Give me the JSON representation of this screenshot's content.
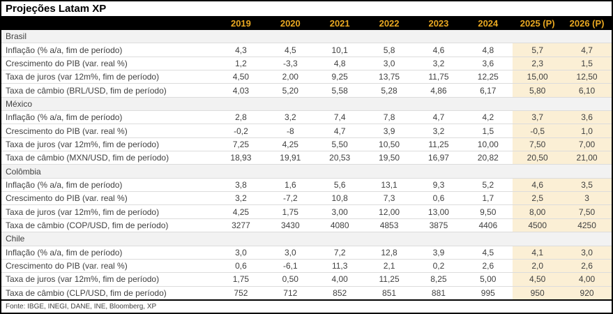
{
  "title": "Projeções Latam XP",
  "footer": {
    "source": "Fonte: IBGE, INEGI, DANE, INE, Bloomberg, XP"
  },
  "colors": {
    "header_bg": "#000000",
    "year_label": "#EAA821",
    "projection_highlight": "#FBEFD5",
    "section_row_bg": "#F2F2F2",
    "row_divider": "#DCDCDC",
    "body_text": "#3F3F3F"
  },
  "chart_data": {
    "type": "table",
    "title": "Projeções Latam XP",
    "columns": [
      "2019",
      "2020",
      "2021",
      "2022",
      "2023",
      "2024",
      "2025 (P)",
      "2026 (P)"
    ],
    "projection_columns": [
      "2025 (P)",
      "2026 (P)"
    ],
    "sections": [
      {
        "name": "Brasil",
        "rows": [
          {
            "label": "Inflação (% a/a, fim de período)",
            "values": [
              "4,3",
              "4,5",
              "10,1",
              "5,8",
              "4,6",
              "4,8",
              "5,7",
              "4,7"
            ]
          },
          {
            "label": "Crescimento do PIB (var. real %)",
            "values": [
              "1,2",
              "-3,3",
              "4,8",
              "3,0",
              "3,2",
              "3,6",
              "2,3",
              "1,5"
            ]
          },
          {
            "label": "Taxa de juros (var 12m%, fim de período)",
            "values": [
              "4,50",
              "2,00",
              "9,25",
              "13,75",
              "11,75",
              "12,25",
              "15,00",
              "12,50"
            ]
          },
          {
            "label": "Taxa de câmbio (BRL/USD, fim de período)",
            "values": [
              "4,03",
              "5,20",
              "5,58",
              "5,28",
              "4,86",
              "6,17",
              "5,80",
              "6,10"
            ]
          }
        ]
      },
      {
        "name": "México",
        "rows": [
          {
            "label": "Inflação (% a/a, fim de período)",
            "values": [
              "2,8",
              "3,2",
              "7,4",
              "7,8",
              "4,7",
              "4,2",
              "3,7",
              "3,6"
            ]
          },
          {
            "label": "Crescimento do PIB (var. real %)",
            "values": [
              "-0,2",
              "-8",
              "4,7",
              "3,9",
              "3,2",
              "1,5",
              "-0,5",
              "1,0"
            ]
          },
          {
            "label": "Taxa de juros (var 12m%, fim de período)",
            "values": [
              "7,25",
              "4,25",
              "5,50",
              "10,50",
              "11,25",
              "10,00",
              "7,50",
              "7,00"
            ]
          },
          {
            "label": "Taxa de câmbio (MXN/USD, fim de período)",
            "values": [
              "18,93",
              "19,91",
              "20,53",
              "19,50",
              "16,97",
              "20,82",
              "20,50",
              "21,00"
            ]
          }
        ]
      },
      {
        "name": "Colômbia",
        "rows": [
          {
            "label": "Inflação (% a/a, fim de período)",
            "values": [
              "3,8",
              "1,6",
              "5,6",
              "13,1",
              "9,3",
              "5,2",
              "4,6",
              "3,5"
            ]
          },
          {
            "label": "Crescimento do PIB (var. real %)",
            "values": [
              "3,2",
              "-7,2",
              "10,8",
              "7,3",
              "0,6",
              "1,7",
              "2,5",
              "3"
            ]
          },
          {
            "label": "Taxa de juros (var 12m%, fim de período)",
            "values": [
              "4,25",
              "1,75",
              "3,00",
              "12,00",
              "13,00",
              "9,50",
              "8,00",
              "7,50"
            ]
          },
          {
            "label": "Taxa de câmbio (COP/USD, fim de período)",
            "values": [
              "3277",
              "3430",
              "4080",
              "4853",
              "3875",
              "4406",
              "4500",
              "4250"
            ]
          }
        ]
      },
      {
        "name": "Chile",
        "rows": [
          {
            "label": "Inflação (% a/a, fim de período)",
            "values": [
              "3,0",
              "3,0",
              "7,2",
              "12,8",
              "3,9",
              "4,5",
              "4,1",
              "3,0"
            ]
          },
          {
            "label": "Crescimento do PIB (var. real %)",
            "values": [
              "0,6",
              "-6,1",
              "11,3",
              "2,1",
              "0,2",
              "2,6",
              "2,0",
              "2,6"
            ]
          },
          {
            "label": "Taxa de juros (var 12m%, fim de período)",
            "values": [
              "1,75",
              "0,50",
              "4,00",
              "11,25",
              "8,25",
              "5,00",
              "4,50",
              "4,00"
            ]
          },
          {
            "label": "Taxa de câmbio (CLP/USD, fim de período)",
            "values": [
              "752",
              "712",
              "852",
              "851",
              "881",
              "995",
              "950",
              "920"
            ]
          }
        ]
      }
    ]
  }
}
